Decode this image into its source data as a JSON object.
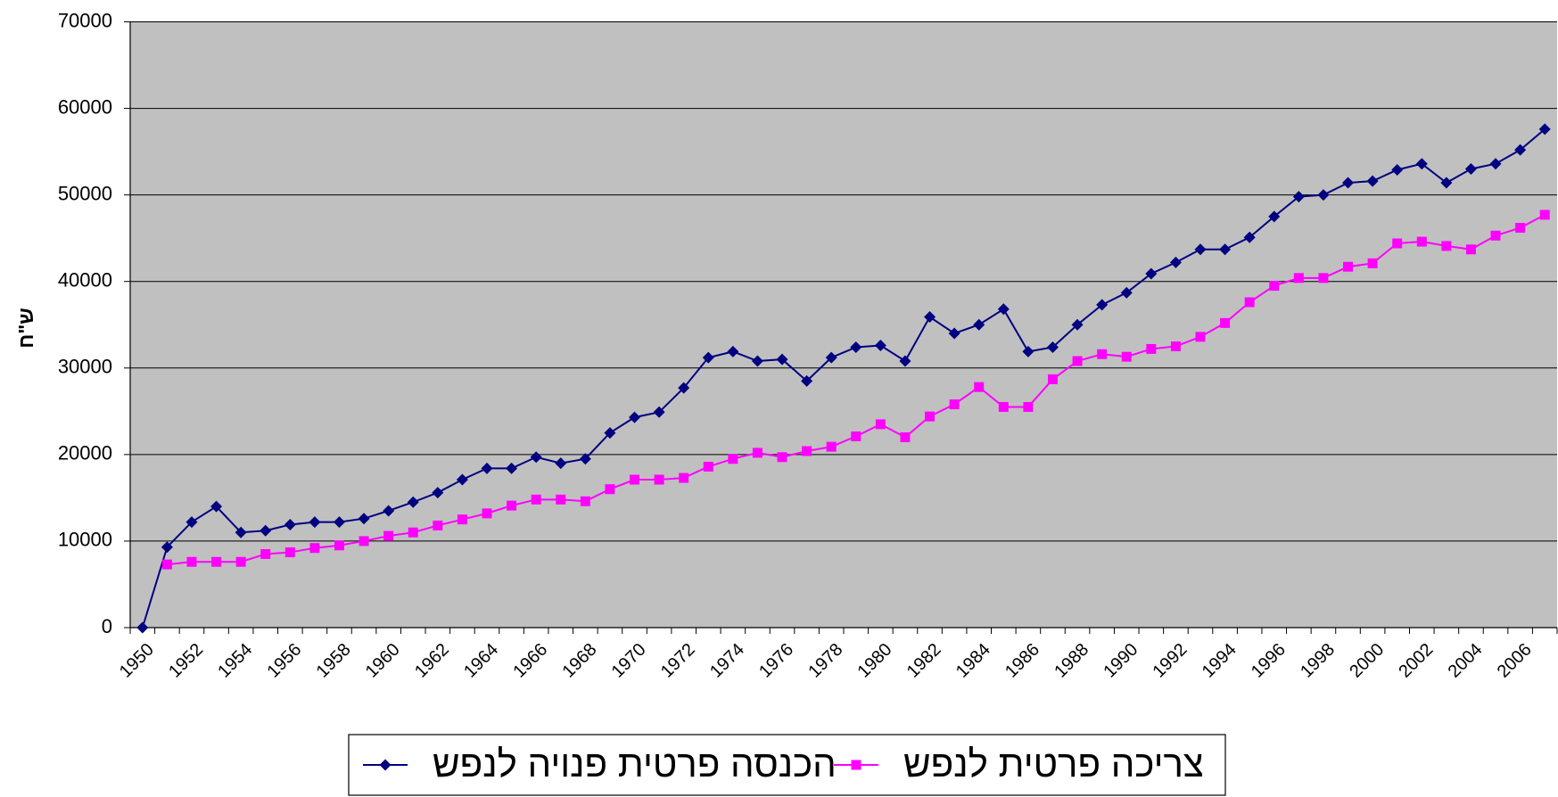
{
  "chart_data": {
    "type": "line",
    "y_label": "ש\"ח",
    "categories": [
      "1950",
      null,
      "1952",
      null,
      "1954",
      null,
      "1956",
      null,
      "1958",
      null,
      "1960",
      null,
      "1962",
      null,
      "1964",
      null,
      "1966",
      null,
      "1968",
      null,
      "1970",
      null,
      "1972",
      null,
      "1974",
      null,
      "1976",
      null,
      "1978",
      null,
      "1980",
      null,
      "1982",
      null,
      "1984",
      null,
      "1986",
      null,
      "1988",
      null,
      "1990",
      null,
      "1992",
      null,
      "1994",
      null,
      "1996",
      null,
      "1998",
      null,
      "2000",
      null,
      "2002",
      null,
      "2004",
      null,
      "2006",
      null
    ],
    "series": [
      {
        "name": "הכנסה פרטית פנויה לנפש",
        "color": "#000080",
        "marker": "diamond",
        "values": [
          0,
          9300,
          12200,
          14000,
          11000,
          11200,
          11900,
          12200,
          12200,
          12600,
          13500,
          14500,
          15600,
          17100,
          18400,
          18400,
          19700,
          19000,
          19500,
          22500,
          24300,
          24900,
          27700,
          31200,
          31900,
          30800,
          31000,
          28500,
          31200,
          32400,
          32600,
          30800,
          35900,
          34000,
          35000,
          36800,
          31900,
          32400,
          35000,
          37300,
          38700,
          40900,
          42200,
          43700,
          43700,
          45100,
          47500,
          49800,
          50000,
          51400,
          51600,
          52900,
          53600,
          51400,
          53000,
          53600,
          55200,
          57600
        ]
      },
      {
        "name": "צריכה פרטית לנפש",
        "color": "#ff00ff",
        "marker": "square",
        "values": [
          null,
          7300,
          7600,
          7600,
          7600,
          8500,
          8700,
          9200,
          9500,
          10000,
          10600,
          11000,
          11800,
          12500,
          13200,
          14100,
          14800,
          14800,
          14600,
          16000,
          17100,
          17100,
          17300,
          18600,
          19500,
          20200,
          19700,
          20400,
          20900,
          22100,
          23500,
          22000,
          24400,
          25800,
          27800,
          25500,
          25500,
          28700,
          30800,
          31600,
          31300,
          32200,
          32500,
          33600,
          35200,
          37600,
          39500,
          40400,
          40400,
          41700,
          42100,
          44400,
          44600,
          44100,
          43700,
          45300,
          46200,
          47700
        ]
      }
    ],
    "ylim": [
      0,
      70000
    ],
    "yticks": [
      0,
      10000,
      20000,
      30000,
      40000,
      50000,
      60000,
      70000
    ],
    "grid": true,
    "background": "#c0c0c0",
    "legend": "bottom"
  }
}
